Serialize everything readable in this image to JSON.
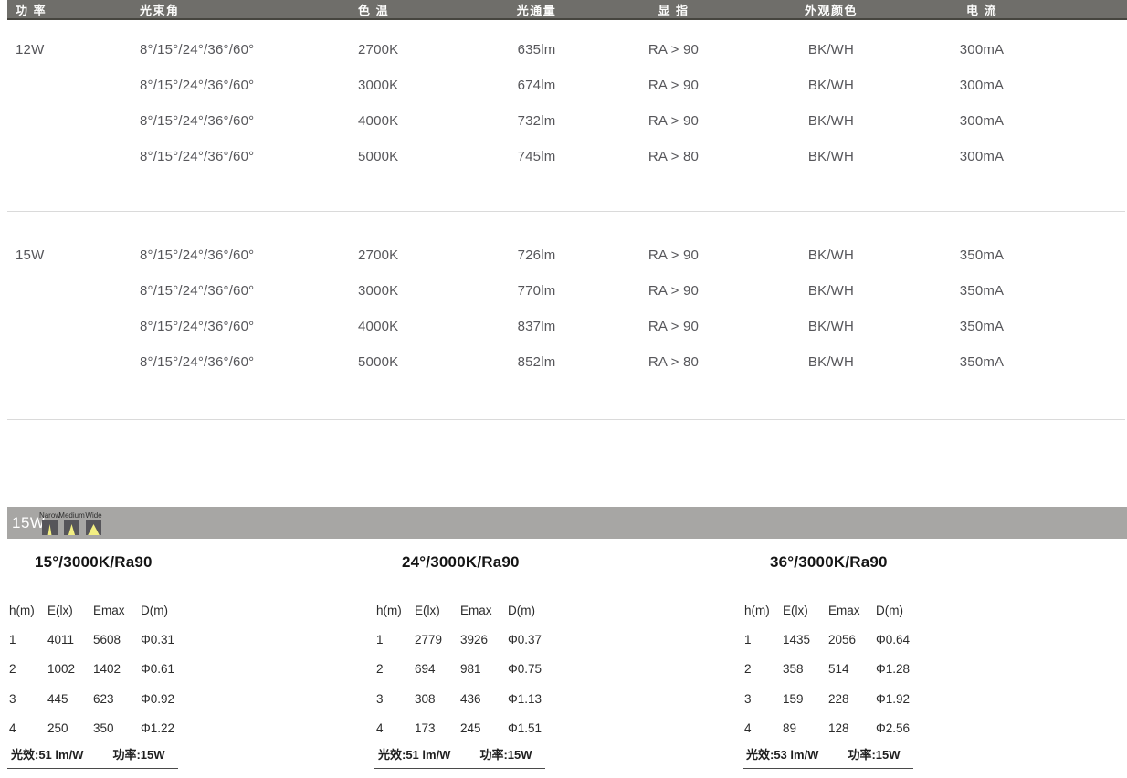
{
  "spec_table": {
    "headers": {
      "power": "功 率",
      "beam_angle": "光束角",
      "cct": "色 温",
      "flux": "光通量",
      "cri": "显 指",
      "finish": "外观颜色",
      "current": "电 流"
    },
    "groups": [
      {
        "power": "12W",
        "rows": [
          {
            "beam_angle": "8°/15°/24°/36°/60°",
            "cct": "2700K",
            "flux": "635lm",
            "cri": "RA > 90",
            "finish": "BK/WH",
            "current": "300mA"
          },
          {
            "beam_angle": "8°/15°/24°/36°/60°",
            "cct": "3000K",
            "flux": "674lm",
            "cri": "RA > 90",
            "finish": "BK/WH",
            "current": "300mA"
          },
          {
            "beam_angle": "8°/15°/24°/36°/60°",
            "cct": "4000K",
            "flux": "732lm",
            "cri": "RA > 90",
            "finish": "BK/WH",
            "current": "300mA"
          },
          {
            "beam_angle": "8°/15°/24°/36°/60°",
            "cct": "5000K",
            "flux": "745lm",
            "cri": "RA > 80",
            "finish": "BK/WH",
            "current": "300mA"
          }
        ]
      },
      {
        "power": "15W",
        "rows": [
          {
            "beam_angle": "8°/15°/24°/36°/60°",
            "cct": "2700K",
            "flux": "726lm",
            "cri": "RA > 90",
            "finish": "BK/WH",
            "current": "350mA"
          },
          {
            "beam_angle": "8°/15°/24°/36°/60°",
            "cct": "3000K",
            "flux": "770lm",
            "cri": "RA > 90",
            "finish": "BK/WH",
            "current": "350mA"
          },
          {
            "beam_angle": "8°/15°/24°/36°/60°",
            "cct": "4000K",
            "flux": "837lm",
            "cri": "RA > 90",
            "finish": "BK/WH",
            "current": "350mA"
          },
          {
            "beam_angle": "8°/15°/24°/36°/60°",
            "cct": "5000K",
            "flux": "852lm",
            "cri": "RA > 80",
            "finish": "BK/WH",
            "current": "350mA"
          }
        ]
      }
    ]
  },
  "beam_bar": {
    "power_label": "15W",
    "icons": [
      {
        "label": "Narow"
      },
      {
        "label": "Medium"
      },
      {
        "label": "Wide"
      }
    ]
  },
  "photometric_tables": [
    {
      "title": "15°/3000K/Ra90",
      "headers": [
        "h(m)",
        "E(lx)",
        "Emax",
        "D(m)"
      ],
      "rows": [
        [
          "1",
          "4011",
          "5608",
          "Φ0.31"
        ],
        [
          "2",
          "1002",
          "1402",
          "Φ0.61"
        ],
        [
          "3",
          "445",
          "623",
          "Φ0.92"
        ],
        [
          "4",
          "250",
          "350",
          "Φ1.22"
        ]
      ],
      "efficacy": "光效:51 lm/W",
      "power": "功率:15W"
    },
    {
      "title": "24°/3000K/Ra90",
      "headers": [
        "h(m)",
        "E(lx)",
        "Emax",
        "D(m)"
      ],
      "rows": [
        [
          "1",
          "2779",
          "3926",
          "Φ0.37"
        ],
        [
          "2",
          "694",
          "981",
          "Φ0.75"
        ],
        [
          "3",
          "308",
          "436",
          "Φ1.13"
        ],
        [
          "4",
          "173",
          "245",
          "Φ1.51"
        ]
      ],
      "efficacy": "光效:51 lm/W",
      "power": "功率:15W"
    },
    {
      "title": "36°/3000K/Ra90",
      "headers": [
        "h(m)",
        "E(lx)",
        "Emax",
        "D(m)"
      ],
      "rows": [
        [
          "1",
          "1435",
          "2056",
          "Φ0.64"
        ],
        [
          "2",
          "358",
          "514",
          "Φ1.28"
        ],
        [
          "3",
          "159",
          "228",
          "Φ1.92"
        ],
        [
          "4",
          "89",
          "128",
          "Φ2.56"
        ]
      ],
      "efficacy": "光效:53 lm/W",
      "power": "功率:15W"
    }
  ],
  "colors": {
    "header_bar": "#6f6e6a",
    "beam_bar": "#a7a6a4",
    "icon_square": "#56555a",
    "beam_yellow": "#f2ee82",
    "divider": "#dadada",
    "spec_text": "#56565a",
    "table_text": "#2b2b2b"
  }
}
